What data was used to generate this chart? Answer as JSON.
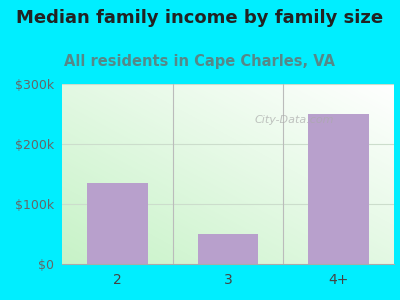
{
  "categories": [
    "2",
    "3",
    "4+"
  ],
  "values": [
    135000,
    50000,
    250000
  ],
  "bar_color": "#b8a0cc",
  "title": "Median family income by family size",
  "subtitle": "All residents in Cape Charles, VA",
  "title_fontsize": 13,
  "subtitle_fontsize": 10.5,
  "title_color": "#222222",
  "subtitle_color": "#558888",
  "ylim": [
    0,
    300000
  ],
  "yticks": [
    0,
    100000,
    200000,
    300000
  ],
  "ytick_labels": [
    "$0",
    "$100k",
    "$200k",
    "$300k"
  ],
  "bg_outer": "#00eeff",
  "watermark": "City-Data.com",
  "bar_width": 0.55,
  "divider_color": "#bbbbbb",
  "grid_color": "#ccddcc",
  "axis_color": "#aaaaaa"
}
